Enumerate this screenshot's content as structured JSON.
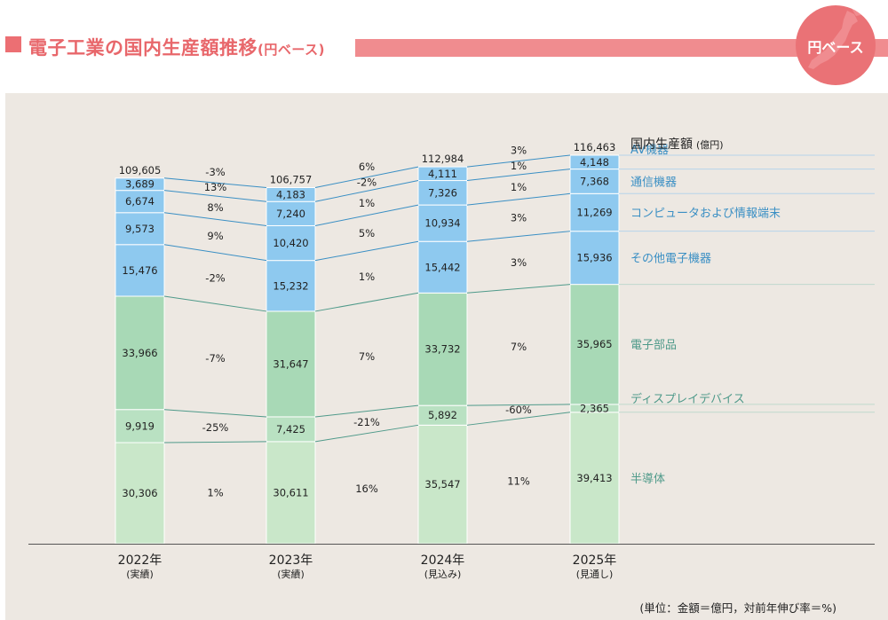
{
  "header": {
    "title": "電子工業の国内生産額推移",
    "title_sub": "(円ベース)",
    "badge": "円ベース",
    "badge_icon": "japan-map-icon"
  },
  "unit_note": "(単位：金額＝億円，対前年伸び率＝%)",
  "chart_data": {
    "type": "bar",
    "stacked": true,
    "categories": [
      "2022年",
      "2023年",
      "2024年",
      "2025年"
    ],
    "category_notes": [
      "(実績)",
      "(実績)",
      "(見込み)",
      "(見通し)"
    ],
    "totals": [
      "109,605",
      "106,757",
      "112,984",
      "116,463"
    ],
    "total_label": "国内生産額",
    "total_unit": "(億円)",
    "series": [
      {
        "name": "半導体",
        "values": [
          30306,
          30611,
          35547,
          39413
        ],
        "labels": [
          "30,306",
          "30,611",
          "35,547",
          "39,413"
        ],
        "color": "#c9e7c9",
        "label_color": "#4f9a8a"
      },
      {
        "name": "ディスプレイデバイス",
        "values": [
          9919,
          7425,
          5892,
          2365
        ],
        "labels": [
          "9,919",
          "7,425",
          "5,892",
          "2,365"
        ],
        "color": "#b9e1c2",
        "label_color": "#4f9a8a"
      },
      {
        "name": "電子部品",
        "values": [
          33966,
          31647,
          33732,
          35965
        ],
        "labels": [
          "33,966",
          "31,647",
          "33,732",
          "35,965"
        ],
        "color": "#a8d9b6",
        "label_color": "#4f9a8a"
      },
      {
        "name": "その他電子機器",
        "values": [
          15476,
          15232,
          15442,
          15936
        ],
        "labels": [
          "15,476",
          "15,232",
          "15,442",
          "15,936"
        ],
        "color": "#8ec9ef",
        "label_color": "#3a8fc4"
      },
      {
        "name": "コンピュータおよび情報端末",
        "values": [
          9573,
          10420,
          10934,
          11269
        ],
        "labels": [
          "9,573",
          "10,420",
          "10,934",
          "11,269"
        ],
        "color": "#8ec9ef",
        "label_color": "#3a8fc4"
      },
      {
        "name": "通信機器",
        "values": [
          6674,
          7240,
          7326,
          7368
        ],
        "labels": [
          "6,674",
          "7,240",
          "7,326",
          "7,368"
        ],
        "color": "#8ec9ef",
        "label_color": "#3a8fc4"
      },
      {
        "name": "AV機器",
        "values": [
          3689,
          4183,
          4111,
          4148
        ],
        "labels": [
          "3,689",
          "4,183",
          "4,111",
          "4,148"
        ],
        "color": "#8ec9ef",
        "label_color": "#3a8fc4"
      }
    ],
    "growth_rates": [
      [
        "1%",
        "16%",
        "11%"
      ],
      [
        "-25%",
        "-21%",
        "-60%"
      ],
      [
        "-7%",
        "7%",
        "7%"
      ],
      [
        "-2%",
        "1%",
        "3%"
      ],
      [
        "9%",
        "5%",
        "3%"
      ],
      [
        "8%",
        "1%",
        "1%"
      ],
      [
        "13%",
        "-2%",
        "1%"
      ]
    ],
    "total_growth_rates": [
      "-3%",
      "6%",
      "3%"
    ],
    "ylim": [
      0,
      116463
    ],
    "grid": false,
    "legend": "right"
  }
}
